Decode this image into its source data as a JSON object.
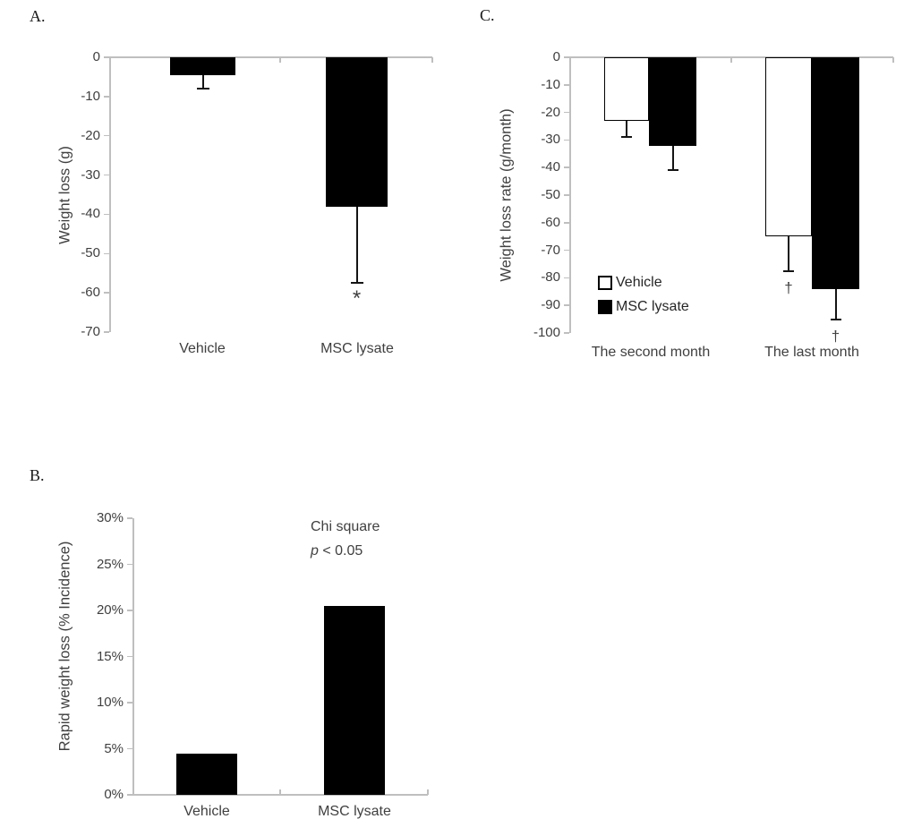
{
  "figure": {
    "background": "#ffffff"
  },
  "colors": {
    "axis_line": "#bfbfbf",
    "bar_black": "#000000",
    "bar_white": "#ffffff",
    "text": "#3f3f3f",
    "annotation_text": "#404040"
  },
  "chart_data": [
    {
      "id": "A",
      "panel_label": "A.",
      "type": "bar",
      "title": "",
      "xlabel": "",
      "ylabel": "Weight loss (g)",
      "ylim": [
        -70,
        0
      ],
      "ytick_labels": [
        "0",
        "-10",
        "-20",
        "-30",
        "-40",
        "-50",
        "-60",
        "-70"
      ],
      "categories": [
        "Vehicle",
        "MSC lysate"
      ],
      "grid": false,
      "legend_position": "none",
      "bars": [
        {
          "category": "Vehicle",
          "value": -4.5,
          "error": 3.5,
          "fill": "black",
          "sig": ""
        },
        {
          "category": "MSC lysate",
          "value": -38,
          "error": 19.5,
          "fill": "black",
          "sig": "*"
        }
      ]
    },
    {
      "id": "B",
      "panel_label": "B.",
      "type": "bar",
      "title": "",
      "xlabel": "",
      "ylabel": "Rapid weight loss (% Incidence)",
      "ylim": [
        0,
        30
      ],
      "unit": "%",
      "ytick_labels": [
        "30%",
        "25%",
        "20%",
        "15%",
        "10%",
        "5%",
        "0%"
      ],
      "categories": [
        "Vehicle",
        "MSC lysate"
      ],
      "grid": false,
      "legend_position": "none",
      "annotation": {
        "line1": "Chi square",
        "line2_italic": "p",
        "line2_rest": " < 0.05"
      },
      "bars": [
        {
          "category": "Vehicle",
          "value": 4.5,
          "fill": "black",
          "sig": ""
        },
        {
          "category": "MSC lysate",
          "value": 20.5,
          "fill": "black",
          "sig": ""
        }
      ]
    },
    {
      "id": "C",
      "panel_label": "C.",
      "type": "bar",
      "title": "",
      "xlabel": "",
      "ylabel": "Weight loss rate (g/month)",
      "ylim": [
        -100,
        0
      ],
      "ytick_labels": [
        "0",
        "-10",
        "-20",
        "-30",
        "-40",
        "-50",
        "-60",
        "-70",
        "-80",
        "-90",
        "-100"
      ],
      "categories": [
        "The second month",
        "The last month"
      ],
      "grid": false,
      "legend_position": "inside-bottom-left",
      "legend": [
        {
          "label": "Vehicle",
          "fill": "white"
        },
        {
          "label": "MSC lysate",
          "fill": "black"
        }
      ],
      "series": [
        {
          "name": "Vehicle",
          "values": [
            -23,
            -65
          ],
          "fill": "white"
        },
        {
          "name": "MSC lysate",
          "values": [
            -32,
            -84
          ],
          "fill": "black"
        }
      ],
      "bars": [
        {
          "category": "The second month",
          "series": "Vehicle",
          "value": -23,
          "error": 6,
          "fill": "white",
          "sig": ""
        },
        {
          "category": "The second month",
          "series": "MSC lysate",
          "value": -32,
          "error": 9,
          "fill": "black",
          "sig": ""
        },
        {
          "category": "The last month",
          "series": "Vehicle",
          "value": -65,
          "error": 12.5,
          "fill": "white",
          "sig": "†"
        },
        {
          "category": "The last month",
          "series": "MSC lysate",
          "value": -84,
          "error": 11,
          "fill": "black",
          "sig": "†"
        }
      ]
    }
  ]
}
